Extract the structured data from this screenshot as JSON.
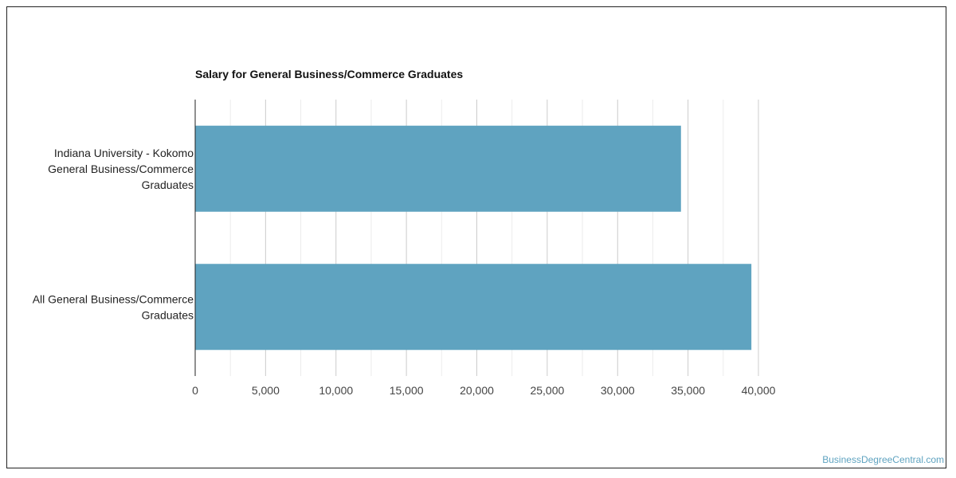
{
  "chart_data": {
    "type": "bar",
    "orientation": "horizontal",
    "title": "Salary for General Business/Commerce Graduates",
    "xlabel": "",
    "ylabel": "",
    "categories": [
      [
        "Indiana University - Kokomo",
        "General Business/Commerce",
        "Graduates"
      ],
      [
        "All General Business/Commerce",
        "Graduates"
      ]
    ],
    "values": [
      34500,
      39500
    ],
    "xlim": [
      0,
      40000
    ],
    "ticks": [
      0,
      5000,
      10000,
      15000,
      20000,
      25000,
      30000,
      35000,
      40000
    ],
    "tick_labels": [
      "0",
      "5,000",
      "10,000",
      "15,000",
      "20,000",
      "25,000",
      "30,000",
      "35,000",
      "40,000"
    ],
    "grid": true,
    "legend": "none",
    "bar_color": "#5fa3c0"
  },
  "watermark": "BusinessDegreeCentral.com"
}
